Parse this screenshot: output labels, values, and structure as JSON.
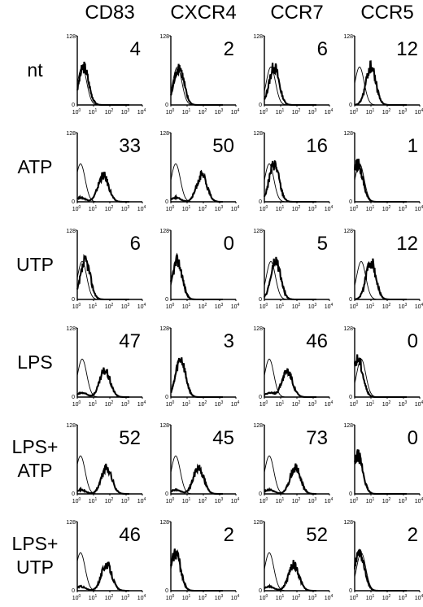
{
  "chart_data": {
    "type": "histogram-grid",
    "columns": [
      "CD83",
      "CXCR4",
      "CCR7",
      "CCR5"
    ],
    "rows": [
      {
        "label_lines": [
          "nt"
        ],
        "values": [
          4,
          2,
          6,
          12
        ]
      },
      {
        "label_lines": [
          "ATP"
        ],
        "values": [
          33,
          50,
          16,
          1
        ]
      },
      {
        "label_lines": [
          "UTP"
        ],
        "values": [
          6,
          0,
          5,
          12
        ]
      },
      {
        "label_lines": [
          "LPS"
        ],
        "values": [
          47,
          3,
          46,
          0
        ]
      },
      {
        "label_lines": [
          "LPS+",
          "ATP"
        ],
        "values": [
          52,
          45,
          73,
          0
        ]
      },
      {
        "label_lines": [
          "LPS+",
          "UTP"
        ],
        "values": [
          46,
          2,
          52,
          2
        ]
      }
    ],
    "x_axis": {
      "scale": "log",
      "range": [
        1,
        10000
      ],
      "tick_labels": [
        [
          "10",
          "0"
        ],
        [
          "10",
          "1"
        ],
        [
          "10",
          "2"
        ],
        [
          "10",
          "3"
        ],
        [
          "10",
          "4"
        ]
      ]
    },
    "y_axis": {
      "range": [
        0,
        128
      ],
      "tick_labels": [
        "0",
        "128"
      ]
    },
    "traces": {
      "control_peak_log10": [
        [
          0.3,
          0.4,
          0.4,
          0.3
        ],
        [
          0.2,
          0.3,
          0.3,
          0.3
        ],
        [
          0.3,
          0.4,
          0.4,
          0.4
        ],
        [
          0.3,
          0.6,
          0.3,
          0.4
        ],
        [
          0.2,
          0.3,
          0.3,
          0.2
        ],
        [
          0.2,
          0.3,
          0.3,
          0.4
        ]
      ],
      "stained_peaks_log10": [
        [
          0.4,
          0.5,
          0.6,
          1.0
        ],
        [
          1.6,
          1.9,
          0.6,
          0.2
        ],
        [
          0.5,
          0.4,
          0.7,
          1.0
        ],
        [
          1.7,
          0.6,
          1.4,
          0.2
        ],
        [
          1.8,
          1.7,
          1.9,
          0.2
        ],
        [
          1.8,
          0.3,
          1.8,
          0.3
        ]
      ]
    }
  }
}
